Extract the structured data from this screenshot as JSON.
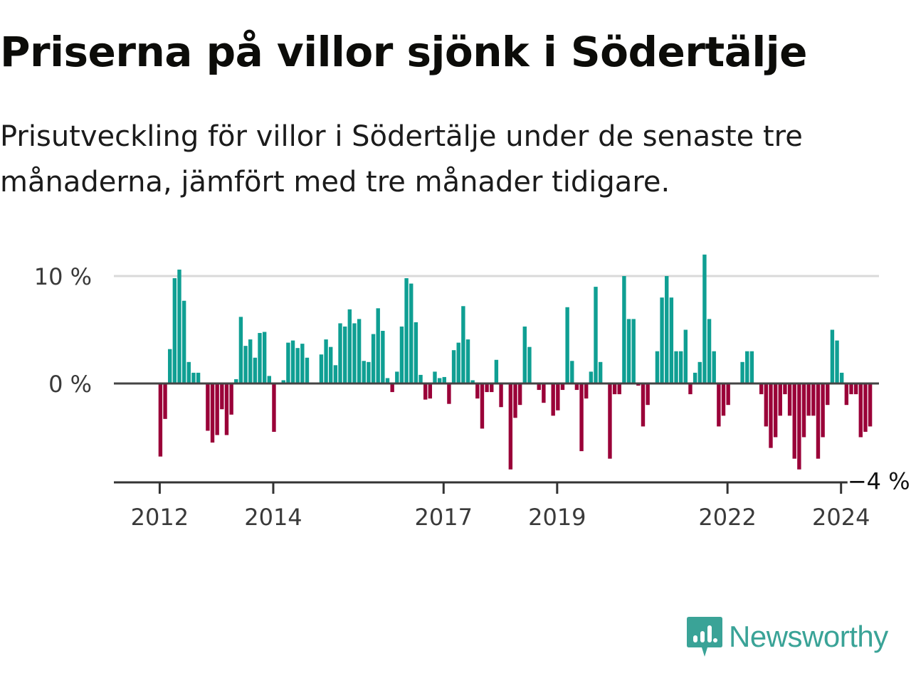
{
  "title": "Priserna på villor sjönk i Södertälje",
  "subtitle": "Prisutveckling för villor i Södertälje under de senaste tre månaderna, jämfört med tre månader tidigare.",
  "brand": {
    "name": "Newsworthy"
  },
  "colors": {
    "positive": "#0f9f93",
    "negative": "#9a0038",
    "brand": "#3aa397",
    "axis": "#333333",
    "grid": "#d9d9d9"
  },
  "chart_data": {
    "type": "bar",
    "x_start": "2011-11",
    "x_step": "month",
    "ylabel": "",
    "ylim": [
      -9,
      12
    ],
    "y_ticks": [
      {
        "value": 0,
        "label": "0 %"
      },
      {
        "value": 10,
        "label": "10 %"
      }
    ],
    "x_ticks": [
      {
        "date": "2012-01",
        "label": "2012"
      },
      {
        "date": "2014-01",
        "label": "2014"
      },
      {
        "date": "2017-01",
        "label": "2017"
      },
      {
        "date": "2019-01",
        "label": "2019"
      },
      {
        "date": "2022-01",
        "label": "2022"
      },
      {
        "date": "2024-01",
        "label": "2024"
      }
    ],
    "end_label": "−4 %",
    "values": [
      0,
      0,
      -6.8,
      -3.3,
      3.2,
      9.8,
      10.6,
      7.7,
      2.0,
      1.0,
      1.0,
      0,
      -4.4,
      -5.5,
      -4.8,
      -2.4,
      -4.8,
      -2.9,
      0.4,
      6.2,
      3.5,
      4.1,
      2.4,
      4.7,
      4.8,
      0.7,
      -4.5,
      0,
      0.3,
      3.8,
      4.0,
      3.3,
      3.7,
      2.4,
      0.1,
      0,
      2.7,
      4.1,
      3.4,
      1.7,
      5.6,
      5.3,
      6.9,
      5.6,
      6.0,
      2.1,
      2.0,
      4.6,
      7.0,
      4.9,
      0.5,
      -0.8,
      1.1,
      5.3,
      9.8,
      9.3,
      5.7,
      0.8,
      -1.5,
      -1.4,
      1.1,
      0.5,
      0.6,
      -1.9,
      3.1,
      3.8,
      7.2,
      4.1,
      0.3,
      -1.4,
      -4.2,
      -0.8,
      -0.8,
      2.2,
      -2.2,
      0,
      -8.0,
      -3.2,
      -2.0,
      5.3,
      3.4,
      0,
      -0.6,
      -1.8,
      0,
      -3.0,
      -2.5,
      -0.6,
      7.1,
      2.1,
      -0.6,
      -6.3,
      -1.4,
      1.1,
      9.0,
      2.0,
      0,
      -7.0,
      -1.0,
      -1.0,
      10.0,
      6.0,
      6.0,
      -0.2,
      -4.0,
      -2.0,
      0,
      3.0,
      8.0,
      10.0,
      8.0,
      3.0,
      3.0,
      5.0,
      -1.0,
      1.0,
      2.0,
      12.0,
      6.0,
      3.0,
      -4.0,
      -3.0,
      -2.0,
      0,
      0,
      2.0,
      3.0,
      3.0,
      0,
      -1.0,
      -4.0,
      -6.0,
      -5.0,
      -3.0,
      -1.0,
      -3.0,
      -7.0,
      -8.0,
      -5.0,
      -3.0,
      -3.0,
      -7.0,
      -5.0,
      -2.0,
      5.0,
      4.0,
      1.0,
      -2.0,
      -1.0,
      -1.0,
      -5.0,
      -4.5,
      -4.0
    ]
  }
}
